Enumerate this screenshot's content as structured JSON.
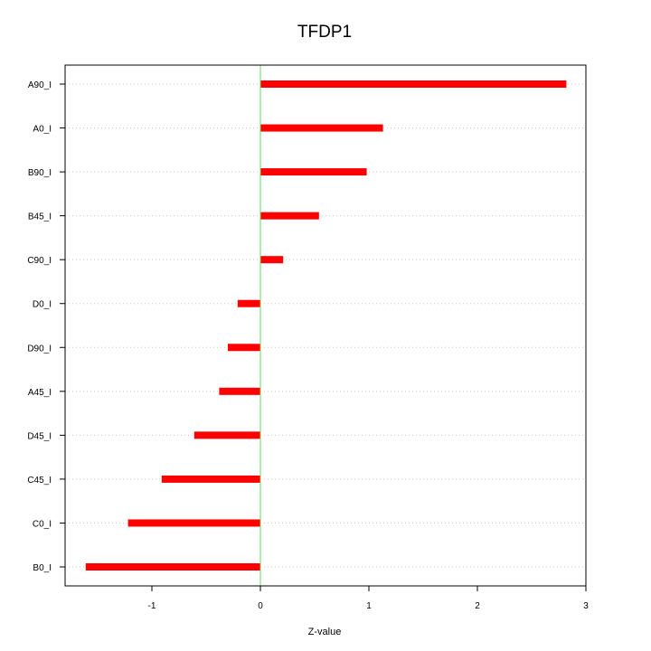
{
  "chart_data": {
    "type": "bar",
    "orientation": "horizontal",
    "title": "TFDP1",
    "xlabel": "Z-value",
    "ylabel": "",
    "xlim": [
      -1.8,
      3.0
    ],
    "xticks": [
      -1,
      0,
      1,
      2,
      3
    ],
    "grid": "horizontal dotted",
    "categories": [
      "A90_I",
      "A0_I",
      "B90_I",
      "B45_I",
      "C90_I",
      "D0_I",
      "D90_I",
      "A45_I",
      "D45_I",
      "C45_I",
      "C0_I",
      "B0_I"
    ],
    "values": [
      2.82,
      1.13,
      0.98,
      0.54,
      0.21,
      -0.21,
      -0.3,
      -0.38,
      -0.61,
      -0.91,
      -1.22,
      -1.61
    ],
    "colors": {
      "bar": "#ff0000",
      "zero_line": "#66dd66",
      "grid": "#c8c8c8",
      "axis": "#000000"
    }
  }
}
